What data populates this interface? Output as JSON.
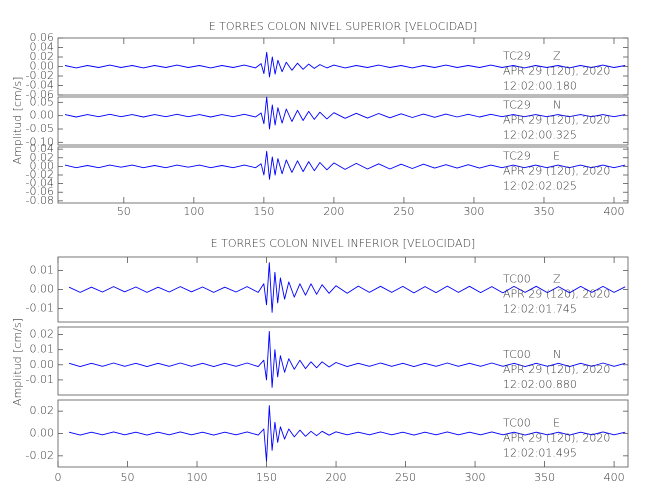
{
  "chart_data": [
    {
      "type": "line",
      "title": "E TORRES COLON NIVEL SUPERIOR [VELOCIDAD]",
      "ylabel": "Amplitud [cm/s]",
      "color": "#0000ff",
      "xlim": [
        3,
        410
      ],
      "xticks": [
        50,
        100,
        150,
        200,
        250,
        300,
        350,
        400
      ],
      "x": [
        8,
        16,
        24,
        32,
        40,
        48,
        56,
        64,
        72,
        80,
        88,
        96,
        104,
        112,
        120,
        128,
        136,
        144,
        148,
        150,
        152,
        154,
        156,
        158,
        160,
        163,
        166,
        170,
        174,
        178,
        182,
        186,
        190,
        195,
        200,
        208,
        216,
        224,
        232,
        240,
        248,
        256,
        264,
        272,
        280,
        288,
        296,
        304,
        312,
        320,
        328,
        336,
        344,
        352,
        360,
        368,
        376,
        384,
        392,
        400,
        408
      ],
      "panels": [
        {
          "station": "TC29",
          "component": "Z",
          "date": "APR 29 (120), 2020",
          "time": "12:02:00.180",
          "ylim": [
            -0.06,
            0.06
          ],
          "yticks": [
            -0.06,
            -0.04,
            -0.02,
            {
              "value": 0,
              "label": "0.00"
            },
            0.02,
            0.04,
            0.06
          ],
          "values": [
            0.002,
            -0.003,
            0.002,
            -0.002,
            0.003,
            -0.002,
            0.002,
            -0.003,
            0.002,
            -0.002,
            0.003,
            -0.002,
            0.002,
            -0.003,
            0.002,
            -0.002,
            0.003,
            -0.003,
            0.006,
            -0.015,
            0.03,
            -0.022,
            0.02,
            -0.016,
            0.013,
            -0.011,
            0.009,
            -0.008,
            0.007,
            -0.006,
            0.005,
            -0.004,
            0.004,
            -0.003,
            0.003,
            -0.003,
            0.002,
            -0.002,
            0.003,
            -0.002,
            0.002,
            -0.003,
            0.002,
            -0.002,
            0.003,
            -0.002,
            0.002,
            -0.002,
            0.003,
            -0.002,
            0.002,
            -0.003,
            0.002,
            -0.002,
            0.002,
            -0.003,
            0.002,
            -0.002,
            0.003,
            -0.002,
            0.002
          ]
        },
        {
          "station": "TC29",
          "component": "N",
          "date": "APR 29 (120), 2020",
          "time": "12:02:00.325",
          "ylim": [
            -0.11,
            0.07
          ],
          "yticks": [
            {
              "value": -0.1,
              "label": "-0.10"
            },
            -0.05,
            {
              "value": 0,
              "label": "0.00"
            },
            0.05
          ],
          "values": [
            0.004,
            -0.005,
            0.004,
            -0.004,
            0.005,
            -0.004,
            0.004,
            -0.005,
            0.004,
            -0.004,
            0.005,
            -0.004,
            0.004,
            -0.005,
            0.004,
            -0.004,
            0.005,
            -0.005,
            0.01,
            -0.03,
            0.07,
            -0.05,
            0.04,
            -0.035,
            0.03,
            -0.028,
            0.025,
            -0.022,
            0.02,
            -0.018,
            0.016,
            -0.014,
            0.013,
            -0.012,
            0.011,
            -0.01,
            0.009,
            -0.009,
            0.008,
            -0.008,
            0.007,
            -0.007,
            0.006,
            -0.006,
            0.006,
            -0.005,
            0.005,
            -0.005,
            0.005,
            -0.004,
            0.004,
            -0.004,
            0.004,
            -0.004,
            0.004,
            -0.004,
            0.004,
            -0.004,
            0.004,
            -0.004,
            0.004
          ]
        },
        {
          "station": "TC29",
          "component": "E",
          "date": "APR 29 (120), 2020",
          "time": "12:02:02.025",
          "ylim": [
            -0.085,
            0.045
          ],
          "yticks": [
            -0.08,
            -0.06,
            -0.04,
            -0.02,
            {
              "value": 0,
              "label": "0.00"
            },
            0.02,
            0.04
          ],
          "values": [
            0.003,
            -0.003,
            0.002,
            -0.003,
            0.003,
            -0.002,
            0.003,
            -0.003,
            0.002,
            -0.003,
            0.003,
            -0.002,
            0.003,
            -0.003,
            0.002,
            -0.003,
            0.003,
            -0.003,
            0.006,
            -0.02,
            0.035,
            -0.03,
            0.022,
            -0.02,
            0.018,
            -0.017,
            0.015,
            -0.014,
            0.013,
            -0.012,
            0.011,
            -0.01,
            0.009,
            -0.008,
            0.008,
            -0.007,
            0.007,
            -0.006,
            0.006,
            -0.006,
            0.005,
            -0.005,
            0.005,
            -0.004,
            0.004,
            -0.004,
            0.004,
            -0.004,
            0.003,
            -0.003,
            0.003,
            -0.003,
            0.003,
            -0.003,
            0.003,
            -0.003,
            0.003,
            -0.003,
            0.003,
            -0.003,
            0.003
          ]
        }
      ]
    },
    {
      "type": "line",
      "title": "E TORRES COLON NIVEL INFERIOR [VELOCIDAD]",
      "ylabel": "Amplitud [cm/s]",
      "color": "#0000ff",
      "xlim": [
        0,
        410
      ],
      "xticks": [
        0,
        50,
        100,
        150,
        200,
        250,
        300,
        350,
        400
      ],
      "x": [
        8,
        16,
        24,
        32,
        40,
        48,
        56,
        64,
        72,
        80,
        88,
        96,
        104,
        112,
        120,
        128,
        136,
        144,
        148,
        150,
        152,
        154,
        156,
        158,
        160,
        163,
        166,
        170,
        174,
        178,
        182,
        186,
        190,
        195,
        200,
        208,
        216,
        224,
        232,
        240,
        248,
        256,
        264,
        272,
        280,
        288,
        296,
        304,
        312,
        320,
        328,
        336,
        344,
        352,
        360,
        368,
        376,
        384,
        392,
        400,
        408
      ],
      "panels": [
        {
          "station": "TC00",
          "component": "Z",
          "date": "APR 29 (120), 2020",
          "time": "12:02:01.745",
          "ylim": [
            -0.017,
            0.017
          ],
          "yticks": [
            -0.01,
            {
              "value": 0,
              "label": "0.00"
            },
            0.01
          ],
          "values": [
            0.0012,
            -0.0015,
            0.0012,
            -0.0013,
            0.0015,
            -0.0012,
            0.0013,
            -0.0015,
            0.0012,
            -0.0013,
            0.0015,
            -0.0012,
            0.0013,
            -0.0015,
            0.0012,
            -0.0013,
            0.0015,
            -0.0015,
            0.003,
            -0.008,
            0.014,
            -0.012,
            0.009,
            -0.007,
            0.006,
            -0.005,
            0.004,
            -0.004,
            0.003,
            -0.003,
            0.003,
            -0.0025,
            0.0025,
            -0.002,
            0.002,
            -0.002,
            0.0018,
            -0.0015,
            0.0017,
            -0.0015,
            0.0016,
            -0.0018,
            0.0015,
            -0.0016,
            0.0018,
            -0.0015,
            0.0017,
            -0.0016,
            0.0015,
            -0.0018,
            0.0016,
            -0.0015,
            0.0017,
            -0.0016,
            0.0015,
            -0.0017,
            0.0016,
            -0.0015,
            0.0016,
            -0.0015,
            0.0014
          ]
        },
        {
          "station": "TC00",
          "component": "N",
          "date": "APR 29 (120), 2020",
          "time": "12:02:00.880",
          "ylim": [
            -0.02,
            0.025
          ],
          "yticks": [
            -0.01,
            {
              "value": 0,
              "label": "0.00"
            },
            0.01,
            0.02
          ],
          "values": [
            0.001,
            -0.0012,
            0.001,
            -0.001,
            0.0012,
            -0.001,
            0.001,
            -0.0012,
            0.001,
            -0.001,
            0.0012,
            -0.001,
            0.001,
            -0.0012,
            0.001,
            -0.001,
            0.0012,
            -0.0012,
            0.003,
            -0.01,
            0.022,
            -0.015,
            0.01,
            -0.008,
            0.006,
            -0.005,
            0.004,
            -0.003,
            0.003,
            -0.0025,
            0.002,
            -0.002,
            0.002,
            -0.0015,
            0.0015,
            -0.0012,
            0.001,
            -0.001,
            0.0012,
            -0.001,
            0.001,
            -0.0012,
            0.001,
            -0.001,
            0.0012,
            -0.001,
            0.001,
            -0.001,
            0.0012,
            -0.001,
            0.001,
            -0.0012,
            0.001,
            -0.001,
            0.001,
            -0.0012,
            0.001,
            -0.001,
            0.0012,
            -0.001,
            0.001
          ]
        },
        {
          "station": "TC00",
          "component": "E",
          "date": "APR 29 (120), 2020",
          "time": "12:02:01.495",
          "ylim": [
            -0.03,
            0.03
          ],
          "yticks": [
            -0.02,
            {
              "value": 0,
              "label": "0.00"
            },
            0.02
          ],
          "values": [
            0.0012,
            -0.0014,
            0.0012,
            -0.0012,
            0.0014,
            -0.0012,
            0.0012,
            -0.0014,
            0.0012,
            -0.0012,
            0.0014,
            -0.0012,
            0.0012,
            -0.0014,
            0.0012,
            -0.0012,
            0.0014,
            -0.0014,
            0.004,
            -0.025,
            0.025,
            -0.015,
            0.01,
            -0.008,
            0.006,
            -0.005,
            0.004,
            -0.003,
            0.003,
            -0.0025,
            0.002,
            -0.002,
            0.002,
            -0.0015,
            0.0015,
            -0.0012,
            0.0012,
            -0.0012,
            0.0014,
            -0.0012,
            0.0012,
            -0.0014,
            0.0012,
            -0.0012,
            0.0014,
            -0.0012,
            0.0012,
            -0.0012,
            0.0014,
            -0.0012,
            0.0012,
            -0.0014,
            0.0012,
            -0.0012,
            0.0012,
            -0.0014,
            0.0012,
            -0.0012,
            0.0014,
            -0.0012,
            0.0012
          ]
        }
      ]
    }
  ]
}
